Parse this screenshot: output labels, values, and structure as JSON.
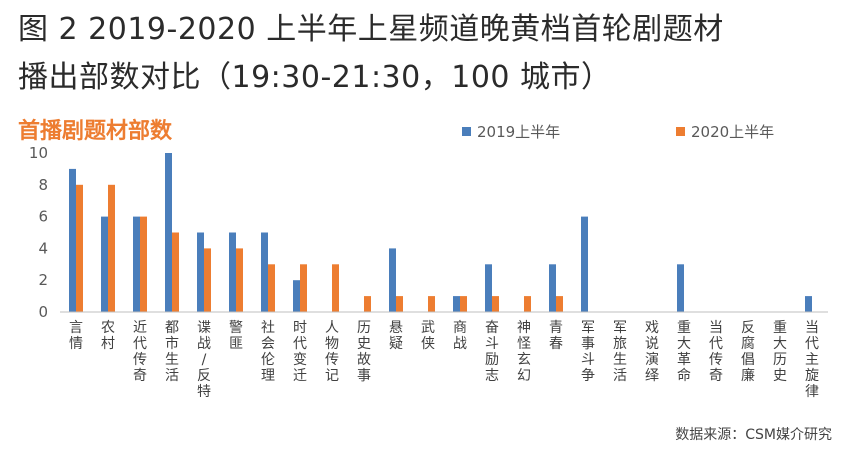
{
  "header": {
    "title_line1": "图 2 2019-2020 上半年上星频道晚黄档首轮剧题材",
    "title_line2": "播出部数对比（19:30-21:30，100 城市）"
  },
  "source": "数据来源：CSM媒介研究",
  "chart_data": {
    "type": "bar",
    "title": "首播剧题材部数",
    "xlabel": "",
    "ylabel": "",
    "ylim": [
      0,
      10
    ],
    "yticks": [
      "0",
      "2",
      "4",
      "6",
      "8",
      "10"
    ],
    "grid": false,
    "legend_position": "top",
    "categories": [
      "言情",
      "农村",
      "近代传奇",
      "都市生活",
      "谍战/反特",
      "警匪",
      "社会伦理",
      "时代变迁",
      "人物传记",
      "历史故事",
      "悬疑",
      "武侠",
      "商战",
      "奋斗励志",
      "神怪玄幻",
      "青春",
      "军事斗争",
      "军旅生活",
      "戏说演绎",
      "重大革命",
      "当代传奇",
      "反腐倡廉",
      "重大历史",
      "当代主旋律"
    ],
    "series": [
      {
        "name": "2019上半年",
        "color": "#4a7ebb",
        "values": [
          9,
          6,
          6,
          10,
          5,
          5,
          5,
          2,
          0,
          0,
          4,
          0,
          1,
          3,
          0,
          3,
          6,
          0,
          0,
          3,
          0,
          0,
          0,
          1
        ]
      },
      {
        "name": "2020上半年",
        "color": "#ed7d31",
        "values": [
          8,
          8,
          6,
          5,
          4,
          4,
          3,
          3,
          3,
          1,
          1,
          1,
          1,
          1,
          1,
          1,
          0,
          0,
          0,
          0,
          0,
          0,
          0,
          0
        ]
      }
    ]
  }
}
